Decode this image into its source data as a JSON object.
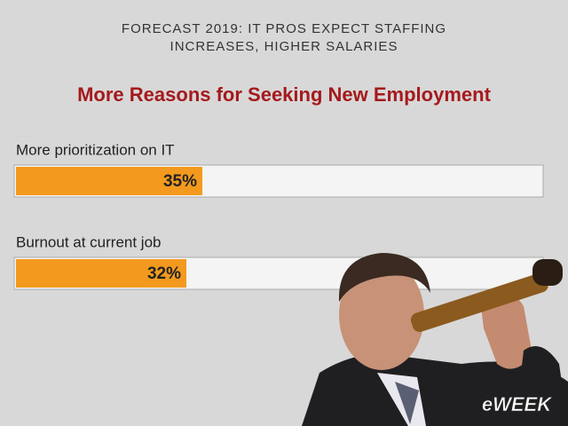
{
  "header": "FORECAST 2019: IT PROS EXPECT STAFFING INCREASES, HIGHER SALARIES",
  "brand": "eWEEK",
  "chart_data": {
    "type": "bar",
    "orientation": "horizontal",
    "title": "More Reasons for Seeking New Employment",
    "categories": [
      "More prioritization on IT",
      "Burnout at current job"
    ],
    "values": [
      35,
      32
    ],
    "value_labels": [
      "35%",
      "32%"
    ],
    "color": "#f39a1e",
    "xlim": [
      0,
      100
    ]
  }
}
